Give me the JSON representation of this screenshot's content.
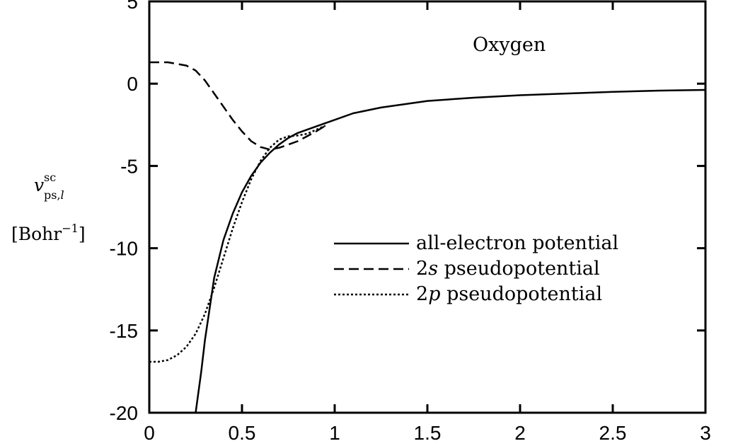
{
  "chart_data": {
    "type": "line",
    "title": "",
    "annotation": "Oxygen",
    "xlabel": "",
    "ylabel": {
      "symbol": "v",
      "superscript": "sc",
      "subscript_main": "ps,",
      "subscript_italic": "l",
      "units_open": "[Bohr",
      "units_exp": "−1",
      "units_close": "]"
    },
    "xlim": [
      0,
      3
    ],
    "ylim": [
      -20,
      5
    ],
    "xticks": [
      0,
      0.5,
      1,
      1.5,
      2,
      2.5,
      3
    ],
    "xtick_labels": [
      "0",
      "0.5",
      "1",
      "1.5",
      "2",
      "2.5",
      "3"
    ],
    "yticks": [
      -20,
      -15,
      -10,
      -5,
      0,
      5
    ],
    "ytick_labels": [
      "-20",
      "-15",
      "-10",
      "-5",
      "0",
      "5"
    ],
    "grid": false,
    "legend_position": "center-right",
    "series": [
      {
        "key": "all-electron",
        "label_prefix": "",
        "label_italic": "",
        "name": "all-electron potential",
        "style": "solid",
        "x": [
          0.25,
          0.28,
          0.3,
          0.35,
          0.4,
          0.45,
          0.5,
          0.55,
          0.6,
          0.65,
          0.7,
          0.75,
          0.8,
          0.9,
          1.0,
          1.1,
          1.25,
          1.5,
          1.75,
          2.0,
          2.25,
          2.5,
          2.75,
          3.0
        ],
        "y": [
          -20.0,
          -17.5,
          -15.6,
          -11.8,
          -9.5,
          -7.9,
          -6.6,
          -5.6,
          -4.8,
          -4.2,
          -3.7,
          -3.3,
          -3.0,
          -2.6,
          -2.2,
          -1.8,
          -1.45,
          -1.05,
          -0.85,
          -0.7,
          -0.6,
          -0.5,
          -0.42,
          -0.38
        ]
      },
      {
        "key": "2s",
        "label_prefix": "2",
        "label_italic": "s",
        "name": " pseudopotential",
        "style": "dashed",
        "x": [
          0.0,
          0.1,
          0.2,
          0.25,
          0.3,
          0.35,
          0.4,
          0.45,
          0.5,
          0.55,
          0.6,
          0.65,
          0.7,
          0.75,
          0.8,
          0.85,
          0.9,
          0.95
        ],
        "y": [
          1.3,
          1.3,
          1.1,
          0.8,
          0.2,
          -0.6,
          -1.4,
          -2.2,
          -2.9,
          -3.5,
          -3.85,
          -4.0,
          -3.9,
          -3.7,
          -3.5,
          -3.2,
          -2.9,
          -2.55
        ]
      },
      {
        "key": "2p",
        "label_prefix": "2",
        "label_italic": "p",
        "name": " pseudopotential",
        "style": "dotted",
        "x": [
          0.0,
          0.05,
          0.1,
          0.15,
          0.2,
          0.25,
          0.3,
          0.35,
          0.4,
          0.45,
          0.5,
          0.55,
          0.6,
          0.65,
          0.7,
          0.75,
          0.8,
          0.85,
          0.9,
          0.95
        ],
        "y": [
          -16.9,
          -16.9,
          -16.8,
          -16.5,
          -16.0,
          -15.2,
          -14.0,
          -12.4,
          -10.6,
          -8.8,
          -7.2,
          -5.8,
          -4.7,
          -3.9,
          -3.4,
          -3.2,
          -3.15,
          -3.05,
          -2.8,
          -2.55
        ]
      }
    ]
  }
}
